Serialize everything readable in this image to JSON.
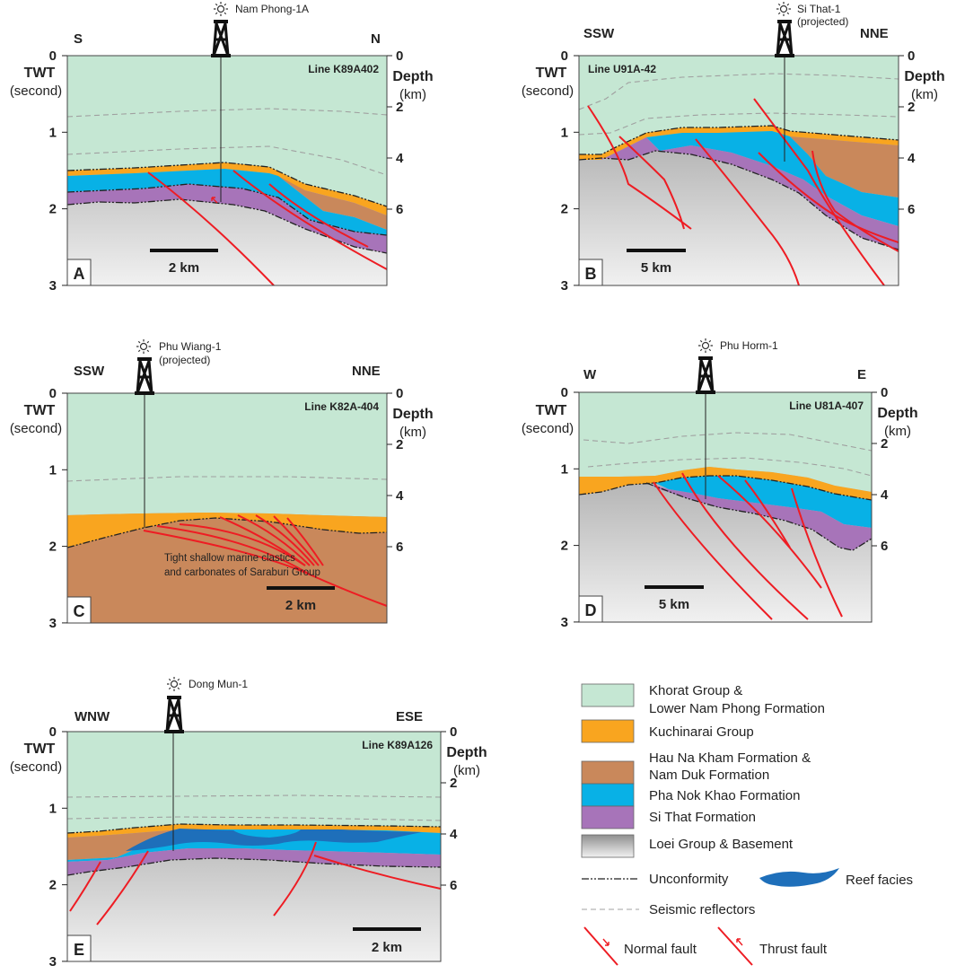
{
  "colors": {
    "khorat": "#c5e7d3",
    "kuchinarai": "#f9a51f",
    "hau_na_kham": "#c9885b",
    "pha_nok_khao": "#08b1e6",
    "si_that": "#a774b9",
    "basement_top": "#8f8f8f",
    "basement_bottom": "#f1f1f1",
    "fault": "#ee1c23",
    "reef": "#1e6fba",
    "reflector": "#a0a0a0"
  },
  "panels": {
    "a": {
      "letter": "A",
      "line": "Line K89A402",
      "well": "Nam Phong-1A",
      "well_note": "",
      "dir_left": "S",
      "dir_right": "N",
      "scale": "2 km",
      "twt": [
        "0",
        "1",
        "2",
        "3"
      ],
      "depth": [
        "0",
        "2",
        "4",
        "6"
      ]
    },
    "b": {
      "letter": "B",
      "line": "Line U91A-42",
      "well": "Si That-1",
      "well_note": "(projected)",
      "dir_left": "SSW",
      "dir_right": "NNE",
      "scale": "5 km",
      "twt": [
        "0",
        "1",
        "2",
        "3"
      ],
      "depth": [
        "0",
        "2",
        "4",
        "6"
      ]
    },
    "c": {
      "letter": "C",
      "line": "Line K82A-404",
      "well": "Phu Wiang-1",
      "well_note": "(projected)",
      "dir_left": "SSW",
      "dir_right": "NNE",
      "scale": "2 km",
      "twt": [
        "0",
        "1",
        "2",
        "3"
      ],
      "depth": [
        "0",
        "2",
        "4",
        "6"
      ],
      "note": [
        "Tight shallow marine clastics",
        "and carbonates of Saraburi Group"
      ]
    },
    "d": {
      "letter": "D",
      "line": "Line U81A-407",
      "well": "Phu Horm-1",
      "well_note": "",
      "dir_left": "W",
      "dir_right": "E",
      "scale": "5 km",
      "twt": [
        "0",
        "1",
        "2",
        "3"
      ],
      "depth": [
        "0",
        "2",
        "4",
        "6"
      ]
    },
    "e": {
      "letter": "E",
      "line": "Line K89A126",
      "well": "Dong Mun-1",
      "well_note": "",
      "dir_left": "WNW",
      "dir_right": "ESE",
      "scale": "2 km",
      "twt": [
        "0",
        "1",
        "2",
        "3"
      ],
      "depth": [
        "0",
        "2",
        "4",
        "6"
      ]
    }
  },
  "axis": {
    "twt_title": "TWT",
    "twt_unit": "(second)",
    "depth_title": "Depth",
    "depth_unit": "(km)"
  },
  "legend": {
    "khorat": [
      "Khorat Group &",
      "Lower Nam Phong Formation"
    ],
    "kuchinarai": "Kuchinarai Group",
    "hau_na_kham": [
      "Hau Na Kham Formation &",
      "Nam Duk Formation"
    ],
    "pha_nok_khao": "Pha Nok Khao Formation",
    "si_that": "Si That Formation",
    "loei": "Loei Group & Basement",
    "unconformity": "Unconformity",
    "reef": "Reef facies",
    "reflectors": "Seismic reflectors",
    "normal_fault": "Normal fault",
    "thrust_fault": "Thrust fault"
  }
}
